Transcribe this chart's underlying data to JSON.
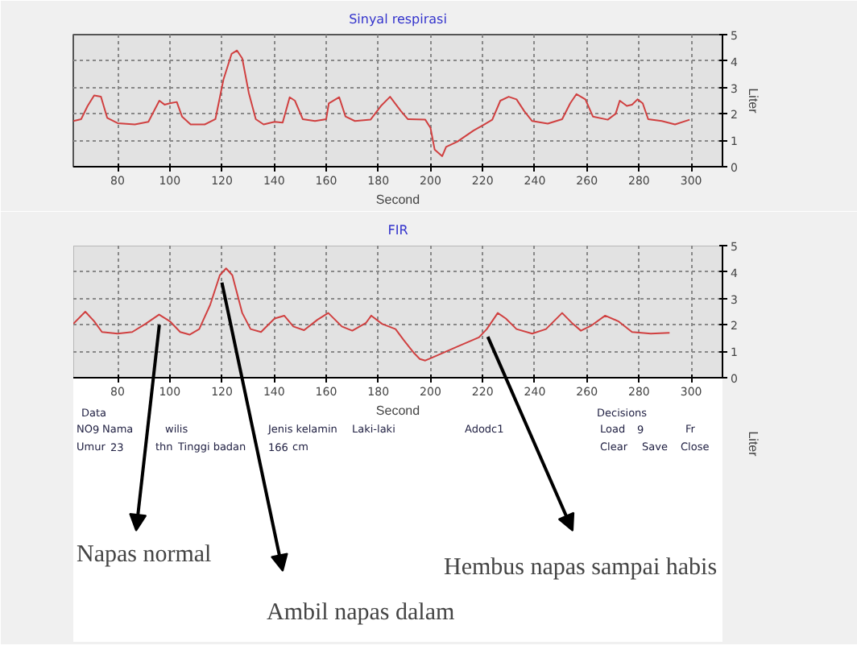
{
  "chart_data": [
    {
      "type": "line",
      "title": "Sinyal respirasi",
      "xlabel": "Second",
      "ylabel": "Liter",
      "xlim": [
        63,
        312
      ],
      "ylim": [
        0,
        5
      ],
      "xticks": [
        80,
        100,
        120,
        140,
        160,
        180,
        200,
        220,
        240,
        260,
        280,
        300
      ],
      "yticks": [
        0,
        1,
        2,
        3,
        4,
        5
      ],
      "grid": true,
      "series": [
        {
          "color": "#d04040",
          "x": [
            63,
            66,
            68.5,
            71,
            73.6,
            76,
            80,
            86.6,
            91.8,
            96,
            98,
            100,
            102.7,
            104.7,
            108,
            113.4,
            117.5,
            120.6,
            123.7,
            125.8,
            127.8,
            130.3,
            133,
            136,
            140.2,
            143.3,
            146,
            148,
            151,
            155.7,
            160,
            161,
            165,
            167.4,
            171,
            177,
            181,
            184.5,
            188.7,
            191.3,
            198,
            200,
            201.6,
            204.5,
            206,
            210.3,
            216.5,
            220.6,
            223.7,
            226.8,
            230,
            233,
            236,
            239,
            245,
            250.5,
            253.6,
            256,
            259.4,
            262.3,
            268,
            271,
            272.6,
            275.3,
            277.3,
            279.4,
            281.4,
            283.5,
            288.7,
            293.8,
            299.4
          ],
          "values": [
            1.73,
            1.8,
            2.3,
            2.7,
            2.65,
            1.85,
            1.65,
            1.6,
            1.7,
            2.5,
            2.35,
            2.4,
            2.45,
            1.9,
            1.6,
            1.6,
            1.8,
            3.3,
            4.27,
            4.4,
            4.1,
            2.8,
            1.8,
            1.6,
            1.7,
            1.67,
            2.63,
            2.5,
            1.8,
            1.73,
            1.8,
            2.4,
            2.63,
            1.9,
            1.73,
            1.78,
            2.3,
            2.65,
            2.1,
            1.8,
            1.78,
            1.47,
            0.65,
            0.4,
            0.75,
            0.95,
            1.37,
            1.6,
            1.78,
            2.5,
            2.65,
            2.55,
            2.1,
            1.73,
            1.63,
            1.8,
            2.4,
            2.75,
            2.55,
            1.9,
            1.78,
            2.0,
            2.5,
            2.3,
            2.35,
            2.55,
            2.4,
            1.8,
            1.73,
            1.6,
            1.78
          ]
        }
      ]
    },
    {
      "type": "line",
      "title": "FIR",
      "xlabel": "Second",
      "ylabel": "Liter",
      "xlim": [
        63,
        312
      ],
      "ylim": [
        0,
        5
      ],
      "xticks": [
        80,
        100,
        120,
        140,
        160,
        180,
        200,
        220,
        240,
        260,
        280,
        300
      ],
      "yticks": [
        0,
        1,
        2,
        3,
        4,
        5
      ],
      "grid": true,
      "series": [
        {
          "color": "#d04040",
          "x": [
            63,
            67.6,
            71,
            74,
            80,
            85.6,
            90.7,
            95.9,
            100,
            104,
            107.6,
            111.3,
            115.5,
            119.2,
            121.6,
            124,
            127.8,
            131,
            135,
            140.2,
            143.9,
            147.4,
            151.5,
            156.7,
            160.8,
            166,
            170,
            175.3,
            177.3,
            181.4,
            186.6,
            189.7,
            193.8,
            195.9,
            198,
            202,
            210.3,
            218.6,
            221.6,
            225.8,
            228.9,
            233,
            239,
            244.3,
            250.5,
            254.6,
            257.7,
            261.8,
            267,
            272,
            277.3,
            284.5,
            291.7
          ],
          "values": [
            2.04,
            2.5,
            2.14,
            1.73,
            1.67,
            1.73,
            2.04,
            2.39,
            2.14,
            1.73,
            1.63,
            1.84,
            2.76,
            3.88,
            4.14,
            3.88,
            2.45,
            1.84,
            1.73,
            2.24,
            2.35,
            1.94,
            1.8,
            2.2,
            2.45,
            1.94,
            1.78,
            2.08,
            2.35,
            2.04,
            1.84,
            1.43,
            0.92,
            0.71,
            0.65,
            0.82,
            1.18,
            1.53,
            1.84,
            2.45,
            2.24,
            1.84,
            1.67,
            1.84,
            2.45,
            2.04,
            1.78,
            1.98,
            2.35,
            2.14,
            1.73,
            1.67,
            1.7
          ]
        }
      ],
      "annotations": [
        {
          "text": "Napas normal",
          "x": 96,
          "y": 2.0
        },
        {
          "text": "Ambil napas dalam",
          "x": 120,
          "y": 3.6
        },
        {
          "text": "Hembus napas sampai habis",
          "x": 222,
          "y": 1.55
        },
        "Data",
        "NO",
        "9",
        "Nama",
        "wilis",
        "Jenis kelamin",
        "Laki-laki",
        "Umur",
        "23",
        "thn",
        "Tinggi badan",
        "166",
        "cm",
        "Adodc1",
        "Decisions",
        "Load",
        "9",
        "Fr",
        "Clear",
        "Save",
        "Close"
      ]
    }
  ]
}
